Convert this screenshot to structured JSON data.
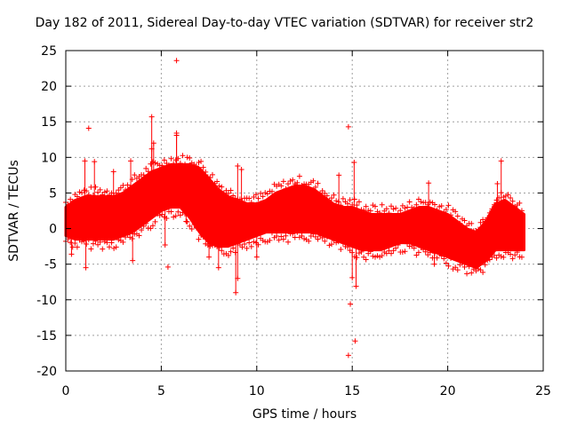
{
  "chart_data": {
    "type": "scatter",
    "title": "Day 182 of 2011, Sidereal Day-to-day VTEC variation (SDTVAR) for receiver str2",
    "xlabel": "GPS time / hours",
    "ylabel": "SDTVAR / TECUs",
    "xlim": [
      0,
      25
    ],
    "ylim": [
      -20,
      25
    ],
    "xticks": [
      0,
      5,
      10,
      15,
      20,
      25
    ],
    "yticks": [
      -20,
      -15,
      -10,
      -5,
      0,
      5,
      10,
      15,
      20,
      25
    ],
    "grid": true,
    "marker": "+",
    "color": "#ff0000",
    "envelope": {
      "description": "Upper and lower bounds of the dense data band (TECU) sampled over GPS time",
      "x": [
        0.0,
        0.5,
        1.0,
        1.5,
        2.0,
        2.5,
        3.0,
        3.5,
        4.0,
        4.5,
        5.0,
        5.5,
        6.0,
        6.5,
        7.0,
        7.5,
        8.0,
        8.5,
        9.0,
        9.5,
        10.0,
        10.5,
        11.0,
        11.5,
        12.0,
        12.5,
        13.0,
        13.5,
        14.0,
        14.5,
        15.0,
        15.5,
        16.0,
        16.5,
        17.0,
        17.5,
        18.0,
        18.5,
        19.0,
        19.5,
        20.0,
        20.5,
        21.0,
        21.5,
        22.0,
        22.5,
        23.0,
        23.5,
        24.0
      ],
      "upper": [
        3.0,
        4.0,
        4.5,
        4.5,
        4.5,
        4.5,
        5.0,
        6.0,
        7.0,
        8.0,
        8.5,
        9.0,
        9.0,
        9.0,
        8.5,
        7.0,
        5.5,
        4.5,
        4.0,
        3.5,
        3.5,
        4.0,
        5.0,
        5.5,
        6.0,
        6.0,
        5.5,
        4.5,
        3.5,
        3.0,
        3.0,
        2.5,
        2.0,
        2.0,
        2.0,
        2.0,
        2.5,
        3.0,
        3.0,
        2.5,
        2.0,
        1.0,
        0.0,
        -0.5,
        1.0,
        3.5,
        4.0,
        3.0,
        2.0
      ],
      "lower": [
        -1.0,
        -1.5,
        -1.5,
        -1.5,
        -1.5,
        -1.5,
        -1.0,
        -0.5,
        0.5,
        1.5,
        2.5,
        3.0,
        3.0,
        1.5,
        -0.5,
        -2.0,
        -2.5,
        -2.5,
        -2.0,
        -1.5,
        -1.0,
        -0.5,
        -0.5,
        -0.5,
        -0.5,
        -0.5,
        -0.5,
        -1.0,
        -1.5,
        -2.0,
        -2.5,
        -3.0,
        -3.0,
        -3.0,
        -2.5,
        -2.0,
        -2.0,
        -2.5,
        -3.0,
        -3.5,
        -4.0,
        -4.5,
        -5.0,
        -5.5,
        -4.5,
        -3.0,
        -3.0,
        -3.0,
        -3.0
      ]
    },
    "outliers": [
      {
        "x": 0.3,
        "y": -3.6
      },
      {
        "x": 1.05,
        "y": -5.5
      },
      {
        "x": 1.2,
        "y": 14.1
      },
      {
        "x": 1.0,
        "y": 9.5
      },
      {
        "x": 1.5,
        "y": 9.4
      },
      {
        "x": 2.5,
        "y": 8.0
      },
      {
        "x": 3.5,
        "y": -4.5
      },
      {
        "x": 3.4,
        "y": 9.5
      },
      {
        "x": 4.5,
        "y": 11.2
      },
      {
        "x": 4.5,
        "y": 15.7
      },
      {
        "x": 4.6,
        "y": 12.0
      },
      {
        "x": 5.2,
        "y": -2.3
      },
      {
        "x": 5.35,
        "y": -5.4
      },
      {
        "x": 5.8,
        "y": 23.6
      },
      {
        "x": 5.8,
        "y": 13.1
      },
      {
        "x": 5.8,
        "y": 13.4
      },
      {
        "x": 6.3,
        "y": 1.0
      },
      {
        "x": 7.5,
        "y": -4.0
      },
      {
        "x": 8.0,
        "y": -5.5
      },
      {
        "x": 9.0,
        "y": 8.8
      },
      {
        "x": 9.0,
        "y": -7.0
      },
      {
        "x": 8.9,
        "y": -9.0
      },
      {
        "x": 9.2,
        "y": 8.3
      },
      {
        "x": 10.0,
        "y": -4.0
      },
      {
        "x": 14.8,
        "y": 14.3
      },
      {
        "x": 14.8,
        "y": -17.8
      },
      {
        "x": 14.9,
        "y": -10.6
      },
      {
        "x": 15.0,
        "y": -6.9
      },
      {
        "x": 15.1,
        "y": 9.3
      },
      {
        "x": 15.2,
        "y": -8.1
      },
      {
        "x": 15.15,
        "y": -15.8
      },
      {
        "x": 14.3,
        "y": 7.5
      },
      {
        "x": 19.0,
        "y": 6.4
      },
      {
        "x": 19.3,
        "y": -5.0
      },
      {
        "x": 22.8,
        "y": 9.5
      },
      {
        "x": 22.6,
        "y": 6.3
      }
    ]
  }
}
